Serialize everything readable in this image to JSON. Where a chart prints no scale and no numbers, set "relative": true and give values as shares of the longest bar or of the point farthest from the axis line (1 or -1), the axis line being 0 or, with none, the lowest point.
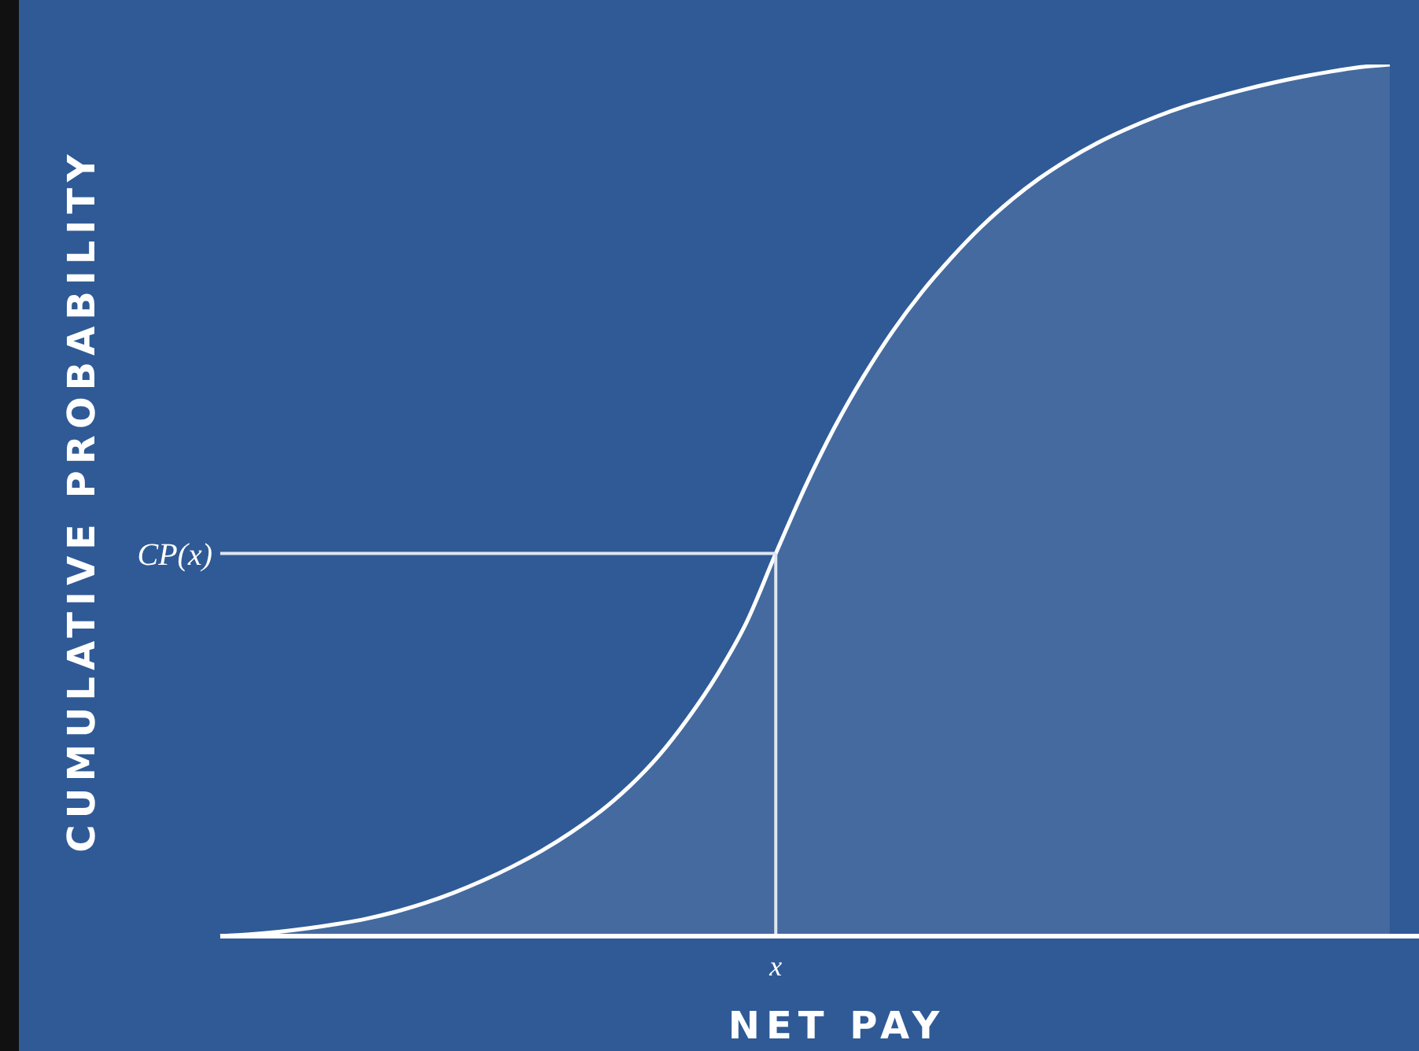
{
  "chart_data": {
    "type": "area",
    "relative": true,
    "xlabel": "NET PAY",
    "ylabel": "CUMULATIVE PROBABILITY",
    "categories": [
      null,
      null,
      null,
      null,
      null,
      null,
      null,
      null,
      null,
      null,
      null,
      null,
      null,
      null,
      null,
      null,
      null,
      null,
      null,
      null,
      null,
      null,
      null,
      null,
      null,
      null,
      null,
      null,
      null,
      null,
      null,
      null,
      null,
      null,
      null,
      null,
      null,
      null,
      null,
      null,
      null,
      null
    ],
    "series": [
      {
        "color": "#ffffff",
        "values": [
          0,
          0.002,
          0.005,
          0.009,
          0.014,
          0.02,
          0.028,
          0.038,
          0.05,
          0.064,
          0.08,
          0.098,
          0.119,
          0.143,
          0.172,
          0.207,
          0.25,
          0.3,
          0.36,
          0.439,
          0.515,
          0.583,
          0.642,
          0.694,
          0.739,
          0.778,
          0.813,
          0.843,
          0.869,
          0.891,
          0.91,
          0.926,
          0.94,
          0.952,
          0.962,
          0.971,
          0.979,
          0.986,
          0.992,
          0.997,
          1,
          null
        ]
      }
    ],
    "ref_lines": [
      {
        "axis": "y",
        "value": 0.439,
        "label": "CP(x)"
      },
      {
        "axis": "x",
        "label": "x"
      }
    ]
  }
}
